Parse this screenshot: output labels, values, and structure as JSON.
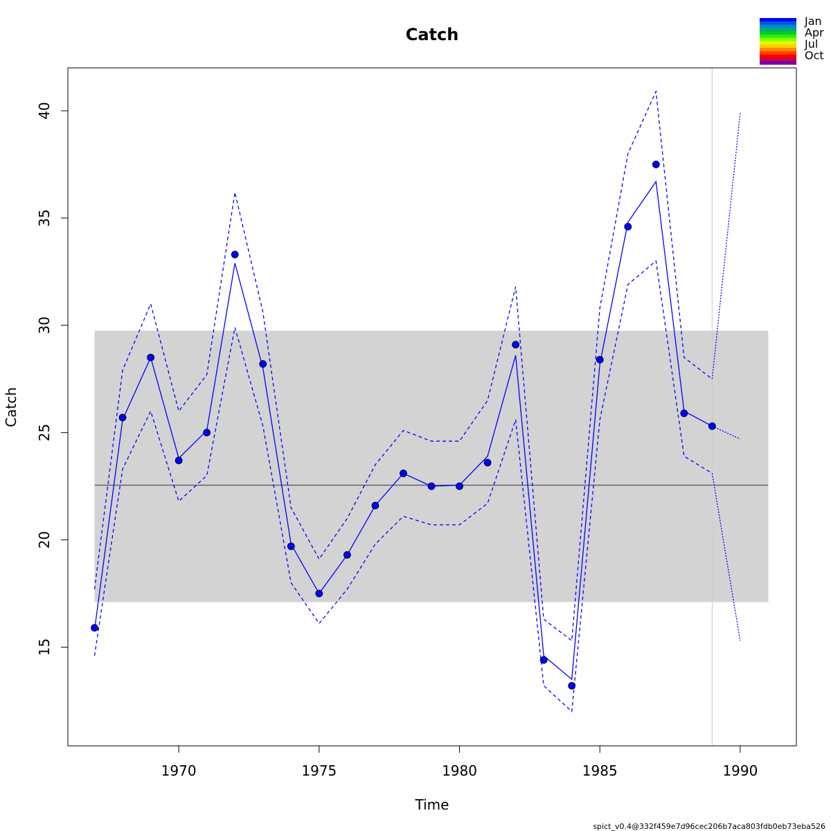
{
  "chart_data": {
    "type": "line",
    "title": "Catch",
    "xlabel": "Time",
    "ylabel": "Catch",
    "xlim": [
      1966.05,
      1992.0
    ],
    "ylim": [
      10.4,
      42.0
    ],
    "x_ticks": [
      1970,
      1975,
      1980,
      1985,
      1990
    ],
    "y_ticks": [
      15,
      20,
      25,
      30,
      35,
      40
    ],
    "grid": false,
    "reference_band": {
      "x": [
        1967,
        1991
      ],
      "lower": 17.1,
      "upper": 29.75,
      "color": "#d3d3d3"
    },
    "reference_line": {
      "x": [
        1967,
        1991
      ],
      "y": 22.55,
      "color": "#666666"
    },
    "vertical_line": {
      "x": 1989,
      "color": "#cccccc"
    },
    "series": [
      {
        "kind": "points",
        "color": "#0000ff",
        "x": [
          1967,
          1968,
          1969,
          1970,
          1971,
          1972,
          1973,
          1974,
          1975,
          1976,
          1977,
          1978,
          1979,
          1980,
          1981,
          1982,
          1983,
          1984,
          1985,
          1986,
          1987,
          1988,
          1989
        ],
        "y": [
          15.9,
          25.7,
          28.5,
          23.7,
          25.0,
          33.3,
          28.2,
          19.7,
          17.5,
          19.3,
          21.6,
          23.1,
          22.5,
          22.5,
          23.6,
          29.1,
          14.4,
          13.2,
          28.4,
          34.6,
          37.5,
          25.9,
          25.3
        ]
      },
      {
        "kind": "fitted",
        "color": "#0000ff",
        "x": [
          1967,
          1968,
          1969,
          1970,
          1971,
          1972,
          1973,
          1974,
          1975,
          1976,
          1977,
          1978,
          1979,
          1980,
          1981,
          1982,
          1983,
          1984,
          1985,
          1986,
          1987,
          1988,
          1989
        ],
        "y": [
          15.8,
          25.6,
          28.5,
          23.8,
          25.1,
          32.9,
          28.0,
          19.8,
          17.5,
          19.3,
          21.6,
          23.1,
          22.5,
          22.55,
          23.9,
          28.6,
          14.6,
          13.5,
          28.2,
          34.8,
          36.7,
          26.0,
          25.3
        ]
      },
      {
        "kind": "upper-ci",
        "color": "#0000ff",
        "x": [
          1967,
          1968,
          1969,
          1970,
          1971,
          1972,
          1973,
          1974,
          1975,
          1976,
          1977,
          1978,
          1979,
          1980,
          1981,
          1982,
          1983,
          1984,
          1985,
          1986,
          1987,
          1988,
          1989
        ],
        "y": [
          17.7,
          27.9,
          31.0,
          26.0,
          27.7,
          36.2,
          30.6,
          21.5,
          19.1,
          21.0,
          23.5,
          25.1,
          24.6,
          24.6,
          26.5,
          31.8,
          16.3,
          15.3,
          30.8,
          38.0,
          40.9,
          28.5,
          27.5
        ]
      },
      {
        "kind": "lower-ci",
        "color": "#0000ff",
        "x": [
          1967,
          1968,
          1969,
          1970,
          1971,
          1972,
          1973,
          1974,
          1975,
          1976,
          1977,
          1978,
          1979,
          1980,
          1981,
          1982,
          1983,
          1984,
          1985,
          1986,
          1987,
          1988,
          1989
        ],
        "y": [
          14.6,
          23.3,
          26.0,
          21.8,
          23.0,
          29.9,
          25.3,
          18.0,
          16.1,
          17.7,
          19.8,
          21.1,
          20.7,
          20.7,
          21.7,
          25.6,
          13.2,
          12.0,
          25.6,
          31.9,
          33.0,
          23.9,
          23.1
        ]
      },
      {
        "kind": "forecast",
        "color": "#0000ff",
        "x": [
          1989,
          1990
        ],
        "y": [
          25.3,
          24.7
        ]
      },
      {
        "kind": "forecast-upper",
        "color": "#0000ff",
        "x": [
          1989,
          1990
        ],
        "y": [
          27.5,
          39.9
        ]
      },
      {
        "kind": "forecast-lower",
        "color": "#0000ff",
        "x": [
          1989,
          1990
        ],
        "y": [
          23.1,
          15.3
        ]
      }
    ],
    "legend": {
      "placement": "top-right",
      "labels": [
        "Jan",
        "Apr",
        "Jul",
        "Oct"
      ],
      "colors": [
        "#0000ff",
        "#0055dd",
        "#0088cc",
        "#00aa77",
        "#00cc33",
        "#33ee00",
        "#88ff00",
        "#ddff00",
        "#ffcc00",
        "#ff8800",
        "#ff4400",
        "#ff0000",
        "#cc0044",
        "#7700aa"
      ]
    }
  },
  "footer": "spict_v0.4@332f459e7d96cec206b7aca803fdb0eb73eba526"
}
